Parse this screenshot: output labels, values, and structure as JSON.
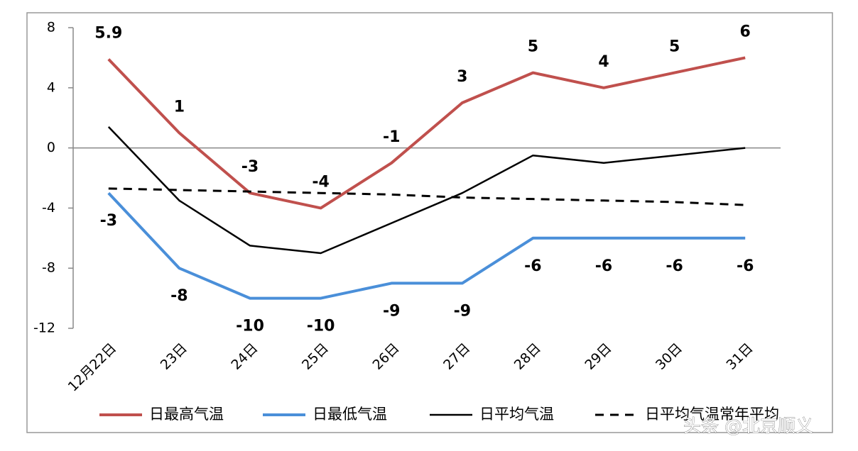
{
  "chart_data": {
    "type": "line",
    "categories": [
      "12月22日",
      "23日",
      "24日",
      "25日",
      "26日",
      "27日",
      "28日",
      "29日",
      "30日",
      "31日"
    ],
    "series": [
      {
        "name": "日最高气温",
        "color": "#c0504d",
        "values": [
          5.9,
          1,
          -3,
          -4,
          -1,
          3,
          5,
          4,
          5,
          6
        ],
        "show_labels": true,
        "label_side": "above"
      },
      {
        "name": "日最低气温",
        "color": "#4a8fd9",
        "values": [
          -3,
          -8,
          -10,
          -10,
          -9,
          -9,
          -6,
          -6,
          -6,
          -6
        ],
        "show_labels": true,
        "label_side": "below"
      },
      {
        "name": "日平均气温",
        "color": "#000000",
        "values": [
          1.4,
          -3.5,
          -6.5,
          -7,
          -5,
          -3,
          -0.5,
          -1,
          -0.5,
          0
        ],
        "show_labels": false
      },
      {
        "name": "日平均气温常年平均",
        "color": "#000000",
        "dashed": true,
        "values": [
          -2.7,
          -2.8,
          -2.9,
          -3.0,
          -3.1,
          -3.3,
          -3.4,
          -3.5,
          -3.6,
          -3.8
        ],
        "show_labels": false
      }
    ],
    "ylim": [
      -12,
      8
    ],
    "yticks": [
      -12,
      -8,
      -4,
      0,
      4,
      8
    ],
    "grid": false,
    "legend": "bottom",
    "watermark": "头条 @北京顺义"
  }
}
